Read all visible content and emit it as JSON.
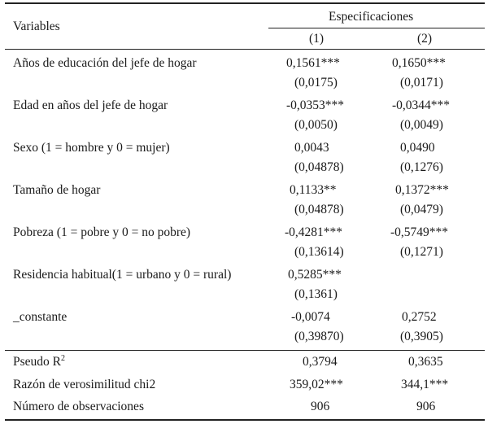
{
  "header": {
    "variables_label": "Variables",
    "specifications_label": "Especificaciones",
    "col1": "(1)",
    "col2": "(2)"
  },
  "rows": [
    {
      "label": "Años de educación del jefe de hogar",
      "c1": "0,1561***",
      "c1_se": "(0,0175)",
      "c2": "0,1650***",
      "c2_se": "(0,0171)"
    },
    {
      "label": "Edad en años del jefe de hogar",
      "c1": "-0,0353***",
      "c1_se": "(0,0050)",
      "c2": "-0,0344***",
      "c2_se": "(0,0049)"
    },
    {
      "label": "Sexo (1 = hombre y 0 = mujer)",
      "c1": "0,0043",
      "c1_se": "(0,04878)",
      "c2": "0,0490",
      "c2_se": "(0,1276)"
    },
    {
      "label": "Tamaño de hogar",
      "c1": "0,1133**",
      "c1_se": "(0,04878)",
      "c2": "0,1372***",
      "c2_se": "(0,0479)"
    },
    {
      "label": "Pobreza (1 = pobre y 0 = no pobre)",
      "c1": "-0,4281***",
      "c1_se": "(0,13614)",
      "c2": "-0,5749***",
      "c2_se": "(0,1271)"
    },
    {
      "label": "Residencia habitual(1 = urbano y 0 = rural)",
      "c1": "0,5285***",
      "c1_se": "(0,1361)",
      "c2": "",
      "c2_se": ""
    },
    {
      "label": "_constante",
      "c1": "-0,0074",
      "c1_se": "(0,39870)",
      "c2": "0,2752",
      "c2_se": "(0,3905)"
    }
  ],
  "stats": [
    {
      "label": "Pseudo R",
      "sup": "2",
      "c1": "0,3794",
      "c2": "0,3635"
    },
    {
      "label": "Razón de verosimilitud chi2",
      "sup": "",
      "c1": "359,02***",
      "c2": "344,1***"
    },
    {
      "label": "Número de observaciones",
      "sup": "",
      "c1": "906",
      "c2": "906"
    }
  ]
}
